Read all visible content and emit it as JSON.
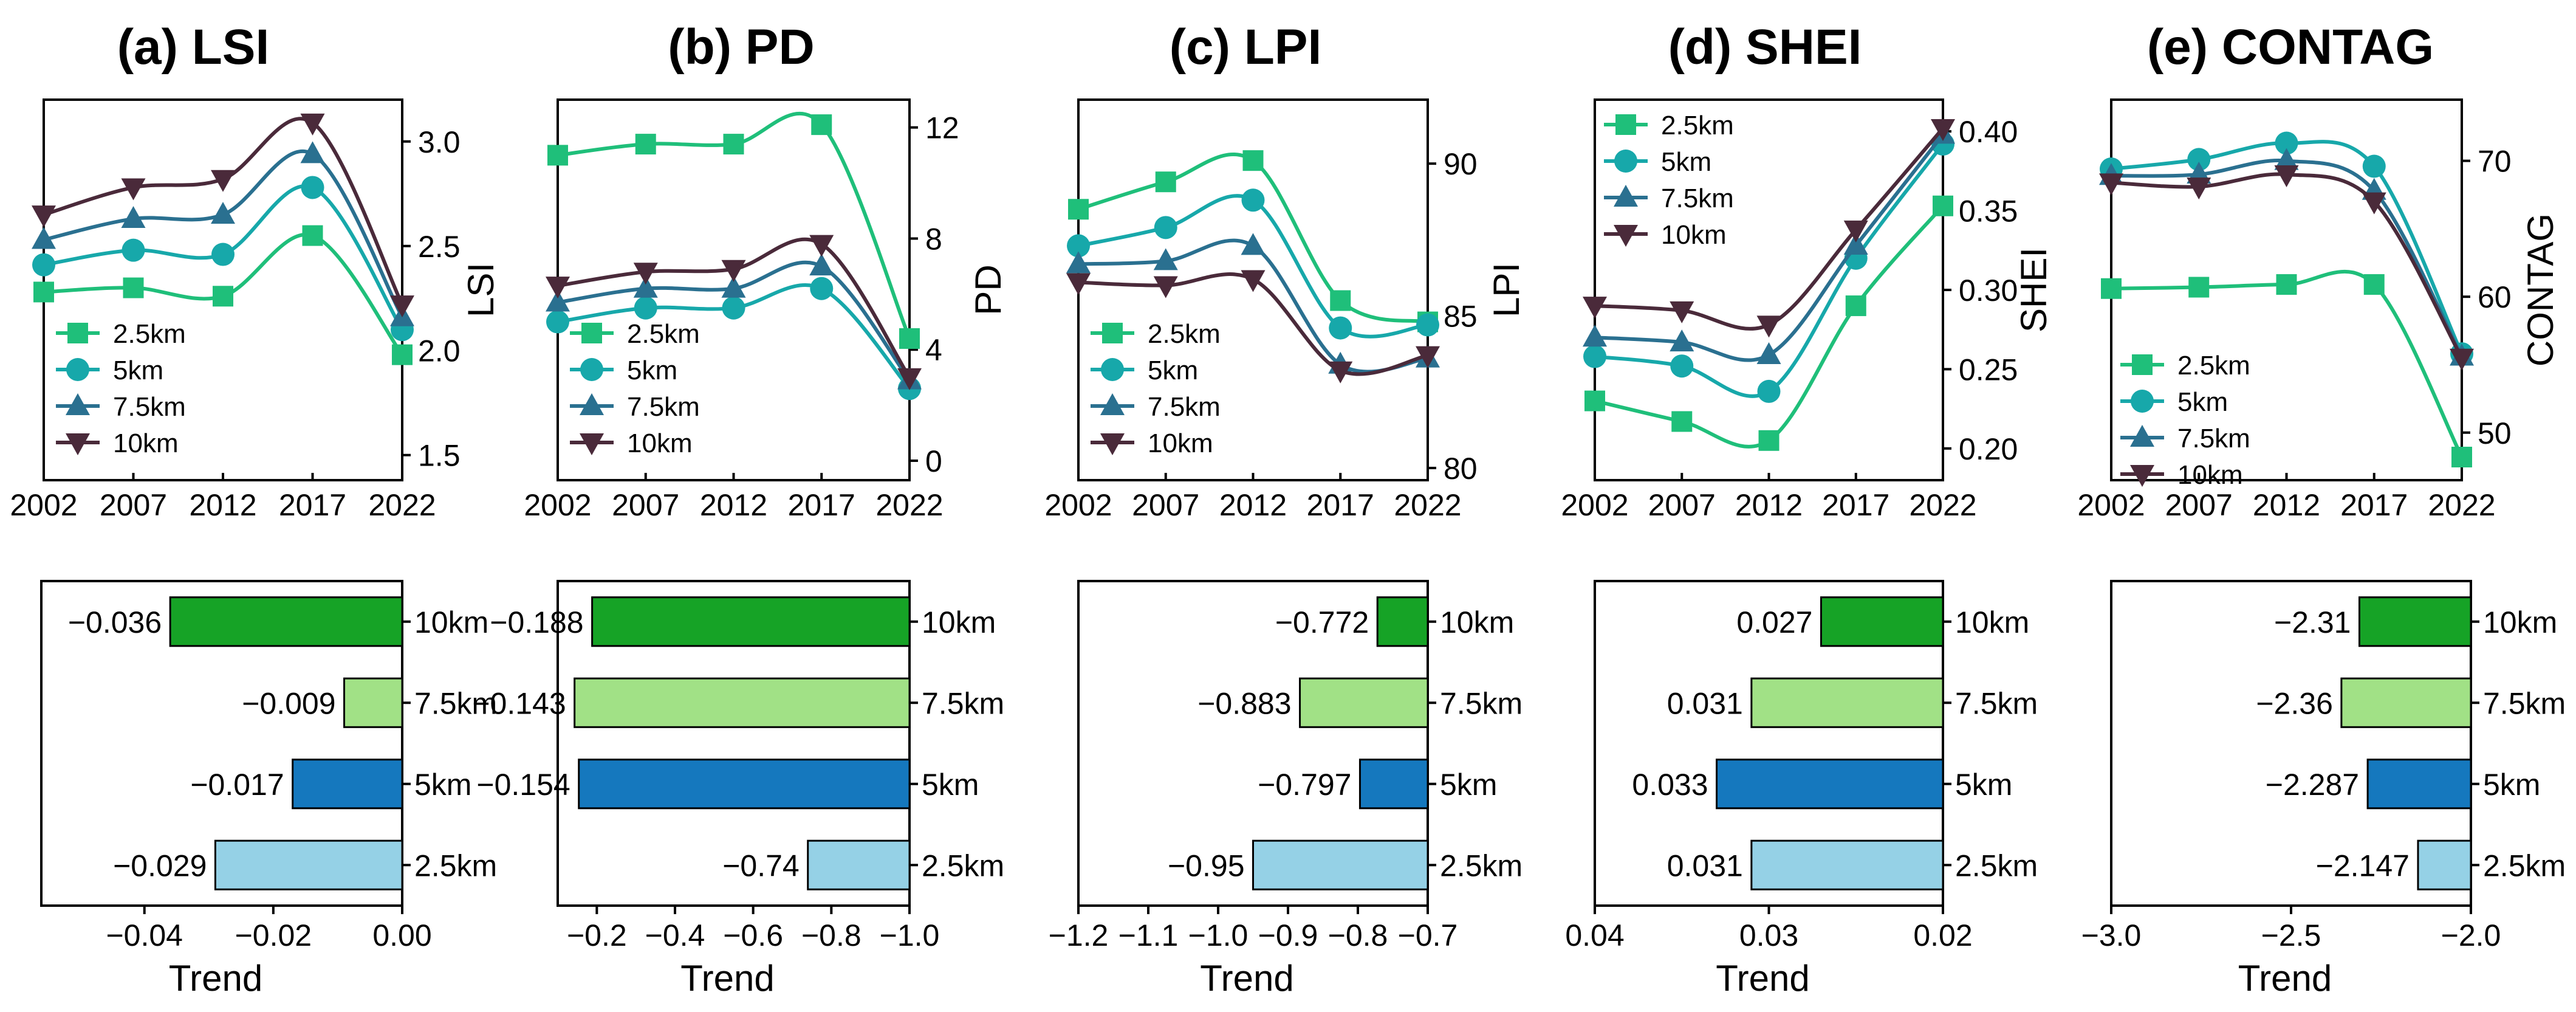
{
  "colors": {
    "2.5km_line": "#1fbf7a",
    "5km_line": "#17a8aa",
    "7.5km_line": "#2a7090",
    "10km_line": "#4a2a3a",
    "bar_10km": "#16a326",
    "bar_7.5km": "#a1e186",
    "bar_5km": "#1578be",
    "bar_2.5km": "#95d1e6"
  },
  "chart_data": [
    {
      "type": "line",
      "id": "a",
      "title": "(a) LSI",
      "ylabel": "LSI",
      "categories": [
        "2002",
        "2007",
        "2012",
        "2017",
        "2022"
      ],
      "ylim": [
        1.38,
        3.2
      ],
      "yticks": [
        1.5,
        2.0,
        2.5,
        3.0
      ],
      "ytick_labels": [
        "1.5",
        "2.0",
        "2.5",
        "3.0"
      ],
      "series": [
        {
          "name": "2.5km",
          "marker": "square",
          "values": [
            2.28,
            2.3,
            2.26,
            2.55,
            1.98
          ]
        },
        {
          "name": "5km",
          "marker": "circle",
          "values": [
            2.41,
            2.48,
            2.46,
            2.78,
            2.1
          ]
        },
        {
          "name": "7.5km",
          "marker": "triangle",
          "values": [
            2.53,
            2.63,
            2.65,
            2.94,
            2.16
          ]
        },
        {
          "name": "10km",
          "marker": "tri-down",
          "values": [
            2.65,
            2.78,
            2.82,
            3.09,
            2.22
          ]
        }
      ]
    },
    {
      "type": "line",
      "id": "b",
      "title": "(b) PD",
      "ylabel": "PD",
      "categories": [
        "2002",
        "2007",
        "2012",
        "2017",
        "2022"
      ],
      "ylim": [
        -0.7,
        13.0
      ],
      "yticks": [
        0,
        4,
        8,
        12
      ],
      "ytick_labels": [
        "0",
        "4",
        "8",
        "12"
      ],
      "series": [
        {
          "name": "2.5km",
          "marker": "square",
          "values": [
            11.0,
            11.4,
            11.4,
            12.1,
            4.4
          ]
        },
        {
          "name": "5km",
          "marker": "circle",
          "values": [
            5.0,
            5.5,
            5.5,
            6.2,
            2.6
          ]
        },
        {
          "name": "7.5km",
          "marker": "triangle",
          "values": [
            5.7,
            6.2,
            6.2,
            7.0,
            2.9
          ]
        },
        {
          "name": "10km",
          "marker": "tri-down",
          "values": [
            6.3,
            6.8,
            6.9,
            7.8,
            3.0
          ]
        }
      ]
    },
    {
      "type": "line",
      "id": "c",
      "title": "(c) LPI",
      "ylabel": "LPI",
      "categories": [
        "2002",
        "2007",
        "2012",
        "2017",
        "2022"
      ],
      "ylim": [
        79.6,
        92.1
      ],
      "yticks": [
        80,
        85,
        90
      ],
      "ytick_labels": [
        "80",
        "85",
        "90"
      ],
      "series": [
        {
          "name": "2.5km",
          "marker": "square",
          "values": [
            88.5,
            89.4,
            90.1,
            85.5,
            84.8
          ]
        },
        {
          "name": "5km",
          "marker": "circle",
          "values": [
            87.3,
            87.9,
            88.8,
            84.6,
            84.7
          ]
        },
        {
          "name": "7.5km",
          "marker": "triangle",
          "values": [
            86.7,
            86.8,
            87.3,
            83.4,
            83.6
          ]
        },
        {
          "name": "10km",
          "marker": "tri-down",
          "values": [
            86.1,
            86.0,
            86.2,
            83.2,
            83.7
          ]
        }
      ]
    },
    {
      "type": "line",
      "id": "d",
      "title": "(d) SHEI",
      "ylabel": "SHEI",
      "categories": [
        "2002",
        "2007",
        "2012",
        "2017",
        "2022"
      ],
      "ylim": [
        0.18,
        0.42
      ],
      "yticks": [
        0.2,
        0.25,
        0.3,
        0.35,
        0.4
      ],
      "ytick_labels": [
        "0.20",
        "0.25",
        "0.30",
        "0.35",
        "0.40"
      ],
      "series": [
        {
          "name": "2.5km",
          "marker": "square",
          "values": [
            0.23,
            0.217,
            0.205,
            0.29,
            0.353
          ]
        },
        {
          "name": "5km",
          "marker": "circle",
          "values": [
            0.258,
            0.252,
            0.236,
            0.32,
            0.392
          ]
        },
        {
          "name": "7.5km",
          "marker": "triangle",
          "values": [
            0.27,
            0.267,
            0.259,
            0.328,
            0.398
          ]
        },
        {
          "name": "10km",
          "marker": "tri-down",
          "values": [
            0.29,
            0.287,
            0.278,
            0.338,
            0.402
          ]
        }
      ]
    },
    {
      "type": "line",
      "id": "e",
      "title": "(e) CONTAG",
      "ylabel": "CONTAG",
      "categories": [
        "2002",
        "2007",
        "2012",
        "2017",
        "2022"
      ],
      "ylim": [
        46.5,
        74.5
      ],
      "yticks": [
        50,
        60,
        70
      ],
      "ytick_labels": [
        "50",
        "60",
        "70"
      ],
      "series": [
        {
          "name": "2.5km",
          "marker": "square",
          "values": [
            60.6,
            60.7,
            60.9,
            60.9,
            48.2
          ]
        },
        {
          "name": "5km",
          "marker": "circle",
          "values": [
            69.4,
            70.1,
            71.3,
            69.6,
            55.8
          ]
        },
        {
          "name": "7.5km",
          "marker": "triangle",
          "values": [
            68.9,
            69.0,
            70.0,
            67.8,
            55.6
          ]
        },
        {
          "name": "10km",
          "marker": "tri-down",
          "values": [
            68.4,
            68.1,
            69.0,
            67.0,
            55.5
          ]
        }
      ]
    },
    {
      "type": "bar",
      "orientation": "horizontal",
      "id": "a-trend",
      "xlabel": "Trend",
      "xlim": [
        -0.056,
        0.0
      ],
      "xticks": [
        -0.04,
        -0.02,
        0.0
      ],
      "xtick_labels": [
        "−0.04",
        "−0.02",
        "0.00"
      ],
      "categories": [
        "10km",
        "7.5km",
        "5km",
        "2.5km"
      ],
      "values": [
        -0.036,
        -0.009,
        -0.017,
        -0.029
      ],
      "value_labels": [
        "−0.036",
        "−0.009",
        "−0.017",
        "−0.029"
      ],
      "label_side": "outside"
    },
    {
      "type": "bar",
      "orientation": "horizontal",
      "id": "b-trend",
      "xlabel": "Trend",
      "xlim": [
        -0.1,
        -1.0
      ],
      "xticks": [
        -0.2,
        -0.4,
        -0.6,
        -0.8,
        -1.0
      ],
      "xtick_labels": [
        "−0.2",
        "−0.4",
        "−0.6",
        "−0.8",
        "−1.0"
      ],
      "categories": [
        "10km",
        "7.5km",
        "5km",
        "2.5km"
      ],
      "values": [
        -0.188,
        -0.143,
        -0.154,
        -0.74
      ],
      "value_labels": [
        "−0.188",
        "−0.143",
        "−0.154",
        "−0.74"
      ],
      "label_side": "outside"
    },
    {
      "type": "bar",
      "orientation": "horizontal",
      "id": "c-trend",
      "xlabel": "Trend",
      "xlim": [
        -1.2,
        -0.7
      ],
      "xticks": [
        -1.2,
        -1.1,
        -1.0,
        -0.9,
        -0.8,
        -0.7
      ],
      "xtick_labels": [
        "−1.2",
        "−1.1",
        "−1.0",
        "−0.9",
        "−0.8",
        "−0.7"
      ],
      "categories": [
        "10km",
        "7.5km",
        "5km",
        "2.5km"
      ],
      "values": [
        -0.772,
        -0.883,
        -0.797,
        -0.95
      ],
      "value_labels": [
        "−0.772",
        "−0.883",
        "−0.797",
        "−0.95"
      ],
      "label_side": "outside"
    },
    {
      "type": "bar",
      "orientation": "horizontal",
      "id": "d-trend",
      "xlabel": "Trend",
      "xlim": [
        0.04,
        0.02
      ],
      "xticks": [
        0.04,
        0.03,
        0.02
      ],
      "xtick_labels": [
        "0.04",
        "0.03",
        "0.02"
      ],
      "categories": [
        "10km",
        "7.5km",
        "5km",
        "2.5km"
      ],
      "values": [
        0.027,
        0.031,
        0.033,
        0.031
      ],
      "value_labels": [
        "0.027",
        "0.031",
        "0.033",
        "0.031"
      ],
      "label_side": "outside"
    },
    {
      "type": "bar",
      "orientation": "horizontal",
      "id": "e-trend",
      "xlabel": "Trend",
      "xlim": [
        -3.0,
        -2.0
      ],
      "xticks": [
        -3.0,
        -2.5,
        -2.0
      ],
      "xtick_labels": [
        "−3.0",
        "−2.5",
        "−2.0"
      ],
      "categories": [
        "10km",
        "7.5km",
        "5km",
        "2.5km"
      ],
      "values": [
        -2.31,
        -2.36,
        -2.287,
        -2.147
      ],
      "value_labels": [
        "−2.31",
        "−2.36",
        "−2.287",
        "−2.147"
      ],
      "label_side": "outside"
    }
  ]
}
